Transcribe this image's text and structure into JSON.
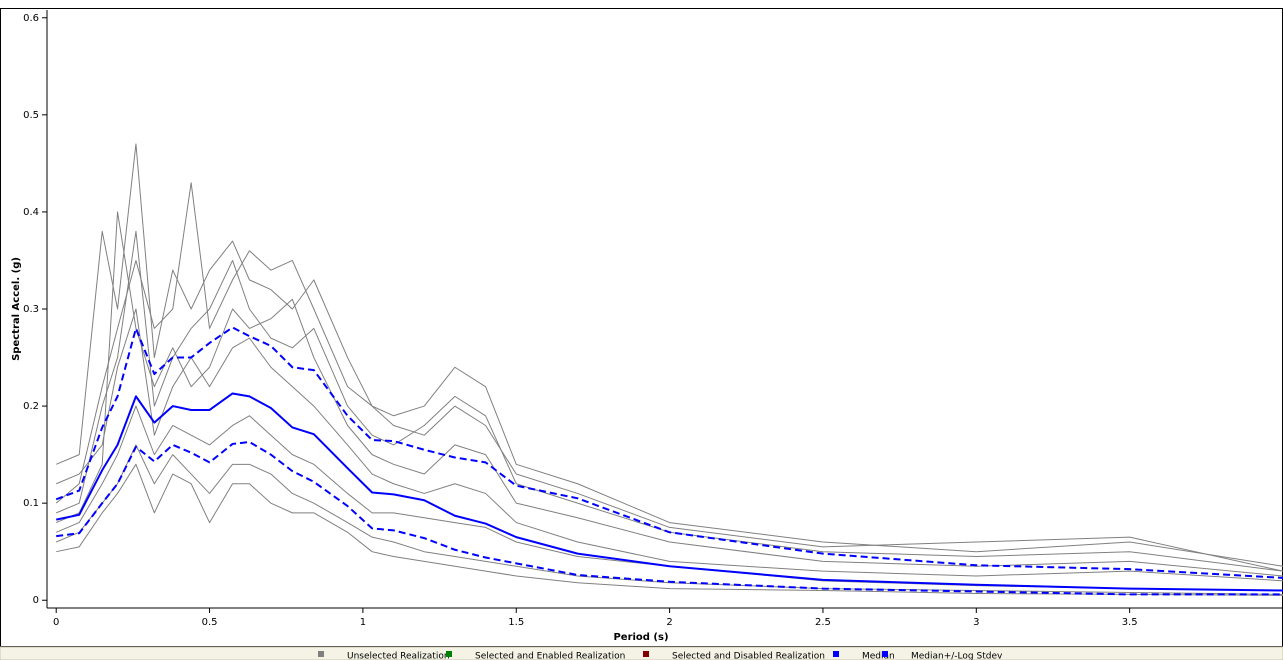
{
  "chart_data": {
    "type": "line",
    "x_label": "Period (s)",
    "y_label": "Spectral Accel. (g)",
    "xlim": [
      -0.03,
      4.0
    ],
    "ylim": [
      -0.008,
      0.608
    ],
    "xticks": [
      0,
      0.5,
      1,
      1.5,
      2,
      2.5,
      3,
      3.5
    ],
    "yticks": [
      0,
      0.1,
      0.2,
      0.3,
      0.4,
      0.5,
      0.6
    ],
    "x": [
      0,
      0.075,
      0.15,
      0.2,
      0.26,
      0.32,
      0.38,
      0.44,
      0.5,
      0.575,
      0.63,
      0.7,
      0.77,
      0.84,
      0.95,
      1.03,
      1.1,
      1.2,
      1.3,
      1.4,
      1.5,
      1.7,
      2.0,
      2.5,
      3.0,
      3.5,
      4.0
    ],
    "series": [
      {
        "name": "Unselected Realization",
        "color": "#808080",
        "lines": [
          [
            0.14,
            0.15,
            0.38,
            0.3,
            0.47,
            0.25,
            0.34,
            0.3,
            0.34,
            0.37,
            0.33,
            0.32,
            0.3,
            0.33,
            0.25,
            0.2,
            0.19,
            0.2,
            0.24,
            0.22,
            0.14,
            0.12,
            0.08,
            0.06,
            0.05,
            0.06,
            0.035
          ],
          [
            0.09,
            0.1,
            0.2,
            0.25,
            0.38,
            0.2,
            0.25,
            0.28,
            0.3,
            0.35,
            0.3,
            0.27,
            0.26,
            0.28,
            0.2,
            0.17,
            0.16,
            0.18,
            0.21,
            0.19,
            0.12,
            0.1,
            0.07,
            0.05,
            0.045,
            0.05,
            0.03
          ],
          [
            0.12,
            0.13,
            0.16,
            0.24,
            0.3,
            0.17,
            0.22,
            0.25,
            0.22,
            0.26,
            0.27,
            0.24,
            0.22,
            0.2,
            0.16,
            0.13,
            0.12,
            0.11,
            0.12,
            0.11,
            0.08,
            0.06,
            0.04,
            0.03,
            0.025,
            0.03,
            0.02
          ],
          [
            0.07,
            0.08,
            0.12,
            0.15,
            0.2,
            0.15,
            0.18,
            0.17,
            0.16,
            0.18,
            0.19,
            0.17,
            0.15,
            0.14,
            0.11,
            0.09,
            0.09,
            0.085,
            0.08,
            0.075,
            0.06,
            0.045,
            0.035,
            0.02,
            0.015,
            0.012,
            0.01
          ],
          [
            0.06,
            0.07,
            0.1,
            0.12,
            0.16,
            0.12,
            0.15,
            0.13,
            0.11,
            0.14,
            0.14,
            0.13,
            0.11,
            0.1,
            0.08,
            0.065,
            0.06,
            0.05,
            0.045,
            0.04,
            0.035,
            0.025,
            0.018,
            0.012,
            0.01,
            0.008,
            0.006
          ],
          [
            0.1,
            0.12,
            0.22,
            0.28,
            0.35,
            0.28,
            0.3,
            0.43,
            0.28,
            0.33,
            0.36,
            0.34,
            0.35,
            0.3,
            0.22,
            0.2,
            0.18,
            0.17,
            0.2,
            0.18,
            0.13,
            0.11,
            0.075,
            0.055,
            0.06,
            0.065,
            0.03
          ],
          [
            0.08,
            0.09,
            0.14,
            0.4,
            0.28,
            0.22,
            0.26,
            0.22,
            0.24,
            0.3,
            0.28,
            0.29,
            0.31,
            0.25,
            0.18,
            0.15,
            0.14,
            0.13,
            0.16,
            0.15,
            0.1,
            0.085,
            0.06,
            0.04,
            0.035,
            0.04,
            0.025
          ],
          [
            0.05,
            0.055,
            0.09,
            0.11,
            0.14,
            0.09,
            0.13,
            0.12,
            0.08,
            0.12,
            0.12,
            0.1,
            0.09,
            0.09,
            0.07,
            0.05,
            0.045,
            0.04,
            0.035,
            0.03,
            0.025,
            0.018,
            0.012,
            0.01,
            0.007,
            0.006,
            0.005
          ]
        ]
      },
      {
        "name": "Selected and Enabled Realization",
        "color": "#008000",
        "lines": []
      },
      {
        "name": "Selected and Disabled Realization",
        "color": "#800000",
        "lines": []
      },
      {
        "name": "Median",
        "color": "#0000ff",
        "lines": [
          [
            0.083,
            0.088,
            0.134,
            0.16,
            0.21,
            0.183,
            0.2,
            0.196,
            0.196,
            0.213,
            0.21,
            0.198,
            0.178,
            0.171,
            0.136,
            0.111,
            0.109,
            0.103,
            0.087,
            0.079,
            0.065,
            0.048,
            0.035,
            0.021,
            0.016,
            0.012,
            0.01
          ]
        ]
      },
      {
        "name": "Median+/-Log Stdev",
        "color": "#0000ff",
        "dashed": true,
        "lines": [
          [
            0.104,
            0.113,
            0.178,
            0.21,
            0.28,
            0.233,
            0.25,
            0.25,
            0.265,
            0.281,
            0.272,
            0.262,
            0.24,
            0.237,
            0.19,
            0.165,
            0.164,
            0.155,
            0.147,
            0.142,
            0.118,
            0.105,
            0.07,
            0.048,
            0.036,
            0.032,
            0.023
          ],
          [
            0.066,
            0.069,
            0.1,
            0.12,
            0.158,
            0.143,
            0.16,
            0.152,
            0.142,
            0.161,
            0.163,
            0.15,
            0.133,
            0.122,
            0.097,
            0.074,
            0.072,
            0.064,
            0.052,
            0.044,
            0.038,
            0.026,
            0.019,
            0.012,
            0.009,
            0.006,
            0.006
          ]
        ]
      }
    ]
  }
}
